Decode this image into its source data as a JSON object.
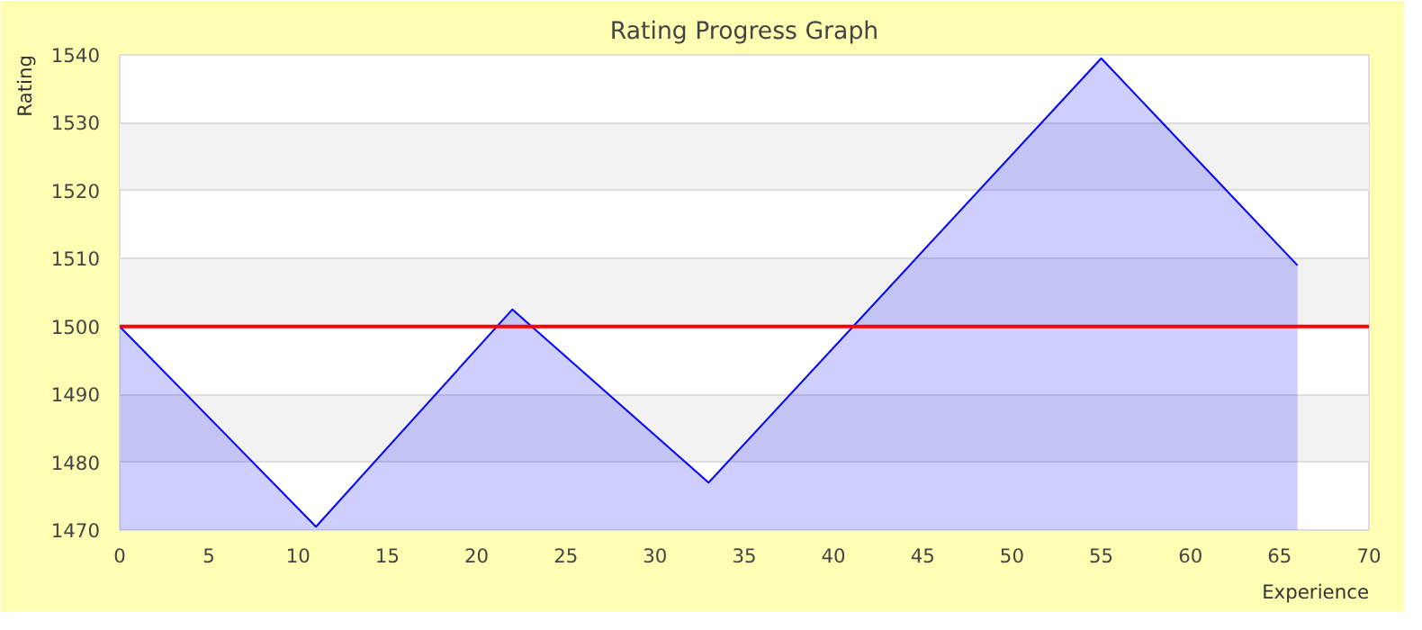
{
  "chart_data": {
    "type": "area",
    "title": "Rating Progress Graph",
    "xlabel": "Experience",
    "ylabel": "Rating",
    "x": [
      0,
      11,
      22,
      33,
      55,
      66
    ],
    "series": [
      {
        "color": "#0000ff",
        "values": [
          1500,
          1470.5,
          1502.5,
          1477,
          1539.5,
          1509
        ]
      }
    ],
    "xlim": [
      0,
      70
    ],
    "xticks": [
      0,
      5,
      10,
      15,
      20,
      25,
      30,
      35,
      40,
      45,
      50,
      55,
      60,
      65,
      70
    ],
    "ylim": [
      1470,
      1540
    ],
    "yticks": [
      1470,
      1480,
      1490,
      1500,
      1510,
      1520,
      1530,
      1540
    ],
    "grid": "y",
    "ref_lines": [
      {
        "axis": "y",
        "value": 1500,
        "color": "#ff0000"
      }
    ]
  }
}
